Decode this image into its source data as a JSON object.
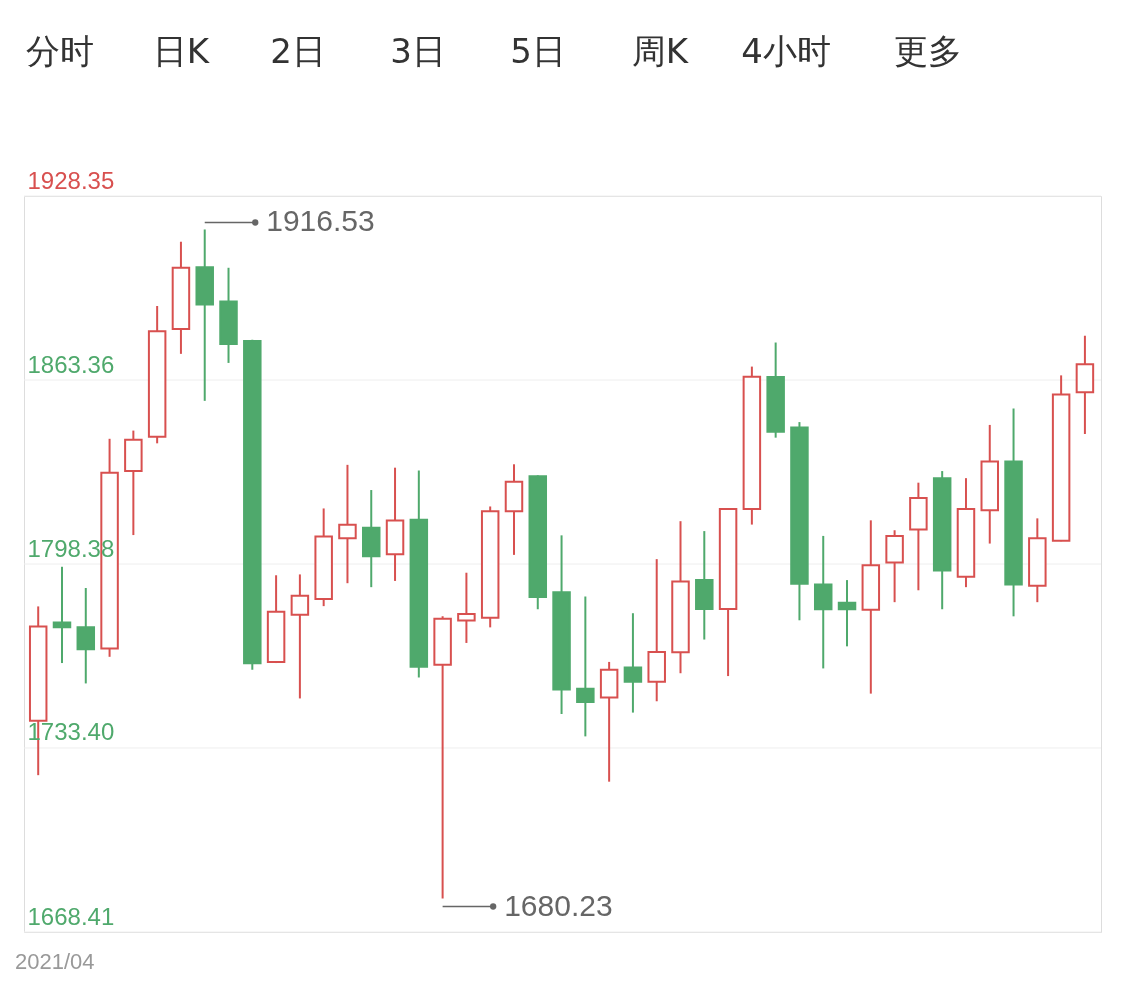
{
  "chart_data": {
    "type": "candlestick",
    "categories": [
      null,
      null,
      null,
      null,
      null,
      null,
      null,
      null,
      null,
      null,
      null,
      null,
      null,
      null,
      null,
      null,
      null,
      null,
      null,
      null,
      null,
      null,
      null,
      null,
      null,
      null,
      null,
      null,
      null,
      null,
      null,
      null,
      null,
      null,
      null,
      null,
      null,
      null,
      null,
      null,
      null,
      null,
      null,
      null,
      null
    ],
    "ohlc": [
      [
        1743.0,
        1783.4,
        1723.8,
        1776.3
      ],
      [
        1777.7,
        1797.4,
        1763.4,
        1776.0
      ],
      [
        1776.0,
        1789.9,
        1756.2,
        1768.3
      ],
      [
        1768.5,
        1842.6,
        1765.6,
        1830.6
      ],
      [
        1831.2,
        1845.5,
        1808.6,
        1842.3
      ],
      [
        1843.3,
        1889.5,
        1841.0,
        1880.6
      ],
      [
        1881.4,
        1912.2,
        1872.6,
        1903.0
      ],
      [
        1903.2,
        1916.53,
        1856.0,
        1890.0
      ],
      [
        1891.1,
        1903.0,
        1869.4,
        1876.1
      ],
      [
        1877.1,
        1877.6,
        1761.0,
        1763.3
      ],
      [
        1763.8,
        1794.4,
        1763.4,
        1781.5
      ],
      [
        1780.5,
        1794.7,
        1750.9,
        1787.2
      ],
      [
        1786.0,
        1818.0,
        1783.5,
        1808.1
      ],
      [
        1807.5,
        1833.4,
        1791.6,
        1812.2
      ],
      [
        1811.2,
        1824.5,
        1790.2,
        1801.1
      ],
      [
        1801.8,
        1832.4,
        1792.4,
        1813.7
      ],
      [
        1814.0,
        1831.4,
        1758.3,
        1762.1
      ],
      [
        1762.8,
        1779.9,
        1680.23,
        1779.0
      ],
      [
        1778.4,
        1795.3,
        1770.5,
        1780.7
      ],
      [
        1779.4,
        1818.7,
        1776.0,
        1817.0
      ],
      [
        1817.0,
        1833.6,
        1801.6,
        1827.4
      ],
      [
        1829.4,
        1829.7,
        1782.4,
        1786.7
      ],
      [
        1788.4,
        1808.5,
        1745.4,
        1754.1
      ],
      [
        1754.3,
        1786.9,
        1737.5,
        1749.6
      ],
      [
        1751.2,
        1763.8,
        1721.5,
        1761.0
      ],
      [
        1761.8,
        1781.0,
        1745.9,
        1756.8
      ],
      [
        1756.8,
        1800.1,
        1749.9,
        1767.3
      ],
      [
        1767.2,
        1813.5,
        1759.8,
        1792.2
      ],
      [
        1792.7,
        1810.0,
        1771.7,
        1782.5
      ],
      [
        1782.5,
        1818.0,
        1758.8,
        1817.8
      ],
      [
        1817.8,
        1868.1,
        1812.3,
        1864.5
      ],
      [
        1864.4,
        1876.6,
        1843.0,
        1845.1
      ],
      [
        1846.6,
        1848.5,
        1778.5,
        1791.4
      ],
      [
        1791.1,
        1808.3,
        1761.5,
        1782.4
      ],
      [
        1784.7,
        1792.7,
        1769.3,
        1782.4
      ],
      [
        1782.2,
        1813.8,
        1752.6,
        1797.9
      ],
      [
        1798.9,
        1810.3,
        1784.9,
        1808.3
      ],
      [
        1810.6,
        1827.1,
        1789.1,
        1821.7
      ],
      [
        1828.7,
        1831.2,
        1782.4,
        1796.1
      ],
      [
        1793.9,
        1828.7,
        1790.2,
        1817.8
      ],
      [
        1817.4,
        1847.5,
        1805.6,
        1834.6
      ],
      [
        1834.6,
        1853.3,
        1779.9,
        1791.1
      ],
      [
        1790.7,
        1814.5,
        1784.9,
        1807.5
      ],
      [
        1806.6,
        1865.0,
        1806.4,
        1858.2
      ],
      [
        1859.0,
        1879.0,
        1844.3,
        1868.9
      ]
    ],
    "colors": [
      "#d8504f",
      "#4fa96c",
      "#4fa96c",
      "#d8504f",
      "#d8504f",
      "#d8504f",
      "#d8504f",
      "#4fa96c",
      "#4fa96c",
      "#4fa96c",
      "#d8504f",
      "#d8504f",
      "#d8504f",
      "#d8504f",
      "#4fa96c",
      "#d8504f",
      "#4fa96c",
      "#d8504f",
      "#d8504f",
      "#d8504f",
      "#d8504f",
      "#4fa96c",
      "#4fa96c",
      "#4fa96c",
      "#d8504f",
      "#4fa96c",
      "#d8504f",
      "#d8504f",
      "#4fa96c",
      "#d8504f",
      "#d8504f",
      "#4fa96c",
      "#4fa96c",
      "#4fa96c",
      "#4fa96c",
      "#d8504f",
      "#d8504f",
      "#d8504f",
      "#4fa96c",
      "#d8504f",
      "#d8504f",
      "#4fa96c",
      "#d8504f",
      "#d8504f",
      "#d8504f"
    ],
    "ylim": [
      1668.41,
      1928.35
    ],
    "yticks": [
      1668.41,
      {
        "value": 1733.4,
        "label": "1733.40"
      },
      1798.38,
      1863.36,
      1928.35
    ],
    "grid": "y",
    "tick_labels": "y",
    "annotations": [
      "分时",
      "日K",
      "2日",
      "3日",
      "5日",
      "周K",
      "4小时",
      "更多",
      "2021/04",
      "1916.53",
      "1680.23"
    ]
  }
}
